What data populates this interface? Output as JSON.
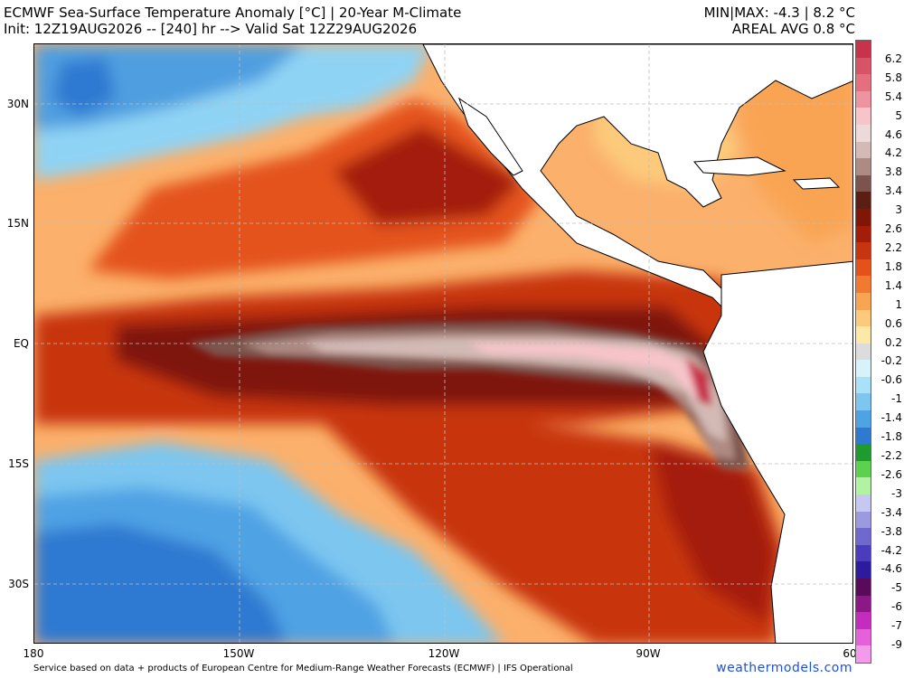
{
  "header": {
    "title": "ECMWF Sea-Surface Temperature Anomaly [°C] | 20-Year M-Climate",
    "init": "Init: 12Z19AUG2026 -- [240] hr --> Valid Sat 12Z29AUG2026",
    "minmax": "MIN|MAX: -4.3 | 8.2 °C",
    "areal": "AREAL AVG 0.8 °C"
  },
  "axes": {
    "lat_labels": [
      "30N",
      "15N",
      "EQ",
      "15S",
      "30S"
    ],
    "lon_labels": [
      "180",
      "150W",
      "120W",
      "90W",
      "60"
    ]
  },
  "colorbar": {
    "labels": [
      "6.2",
      "5.8",
      "5.4",
      "5",
      "4.6",
      "4.2",
      "3.8",
      "3.4",
      "3",
      "2.6",
      "2.2",
      "1.8",
      "1.4",
      "1",
      "0.6",
      "0.2",
      "-0.2",
      "-0.6",
      "-1",
      "-1.4",
      "-1.8",
      "-2.2",
      "-2.6",
      "-3",
      "-3.4",
      "-3.8",
      "-4.2",
      "-4.6",
      "-5",
      "-6",
      "-7",
      "-9"
    ],
    "colors": [
      "#c8324b",
      "#d85366",
      "#e46f7f",
      "#ee93a0",
      "#f6c4c9",
      "#ecd9d8",
      "#d3bab5",
      "#ad8a83",
      "#7d544d",
      "#5a1f12",
      "#7f1608",
      "#a41d08",
      "#c8340f",
      "#e4521a",
      "#f27932",
      "#f9a453",
      "#fcca7a",
      "#fde9a7",
      "#dcdcdc",
      "#d7f2fb",
      "#a9e2f8",
      "#7cc6f0",
      "#4fa2e4",
      "#2f79d1",
      "#1f9a2f",
      "#5bd14f",
      "#b3f2a3",
      "#c6c8ef",
      "#9d99df",
      "#7168cf",
      "#4a3bbf",
      "#2c1a9f",
      "#5a0a5a",
      "#8e1788",
      "#c42bbf",
      "#e660d9",
      "#f39bea"
    ],
    "top_value": "max"
  },
  "footer": {
    "credit": "Service based on data + products of European Centre for Medium-Range Weather Forecasts (ECMWF) | IFS Operational",
    "site": "weathermodels.com"
  },
  "palette": {
    "land": "#ffffff",
    "coast": "#000000",
    "grid": "#bdbdbd",
    "neutral": "#dcdcdc"
  }
}
